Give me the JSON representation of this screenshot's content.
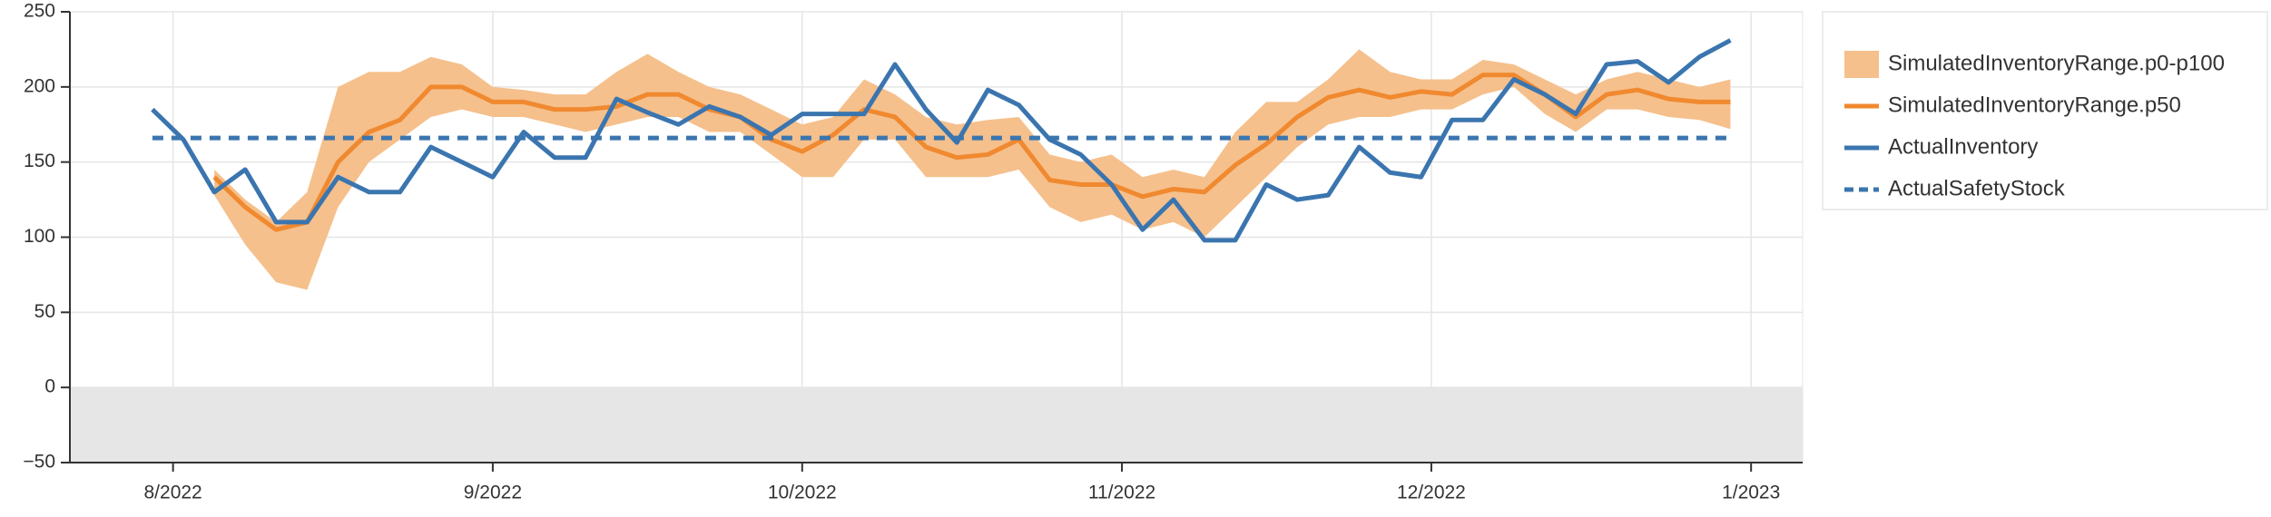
{
  "chart_data": {
    "type": "line",
    "x": [
      "2022-07-30",
      "2022-08-02",
      "2022-08-05",
      "2022-08-08",
      "2022-08-11",
      "2022-08-14",
      "2022-08-17",
      "2022-08-20",
      "2022-08-23",
      "2022-08-26",
      "2022-08-29",
      "2022-09-01",
      "2022-09-04",
      "2022-09-07",
      "2022-09-10",
      "2022-09-13",
      "2022-09-16",
      "2022-09-19",
      "2022-09-22",
      "2022-09-25",
      "2022-09-28",
      "2022-10-01",
      "2022-10-04",
      "2022-10-07",
      "2022-10-10",
      "2022-10-13",
      "2022-10-16",
      "2022-10-19",
      "2022-10-22",
      "2022-10-25",
      "2022-10-28",
      "2022-10-31",
      "2022-11-03",
      "2022-11-06",
      "2022-11-09",
      "2022-11-12",
      "2022-11-15",
      "2022-11-18",
      "2022-11-21",
      "2022-11-24",
      "2022-11-27",
      "2022-11-30",
      "2022-12-03",
      "2022-12-06",
      "2022-12-09",
      "2022-12-12",
      "2022-12-15",
      "2022-12-18",
      "2022-12-21",
      "2022-12-24",
      "2022-12-27",
      "2022-12-30"
    ],
    "bands": [
      {
        "name": "SimulatedInventoryRange.p0-p100",
        "color": "#f5c08c",
        "low": [
          null,
          null,
          128,
          95,
          70,
          65,
          120,
          150,
          165,
          180,
          185,
          180,
          180,
          175,
          170,
          175,
          180,
          180,
          170,
          170,
          155,
          140,
          140,
          165,
          165,
          140,
          140,
          140,
          145,
          120,
          110,
          115,
          105,
          110,
          100,
          120,
          140,
          160,
          175,
          180,
          180,
          185,
          185,
          195,
          200,
          182,
          170,
          185,
          185,
          180,
          178,
          172
        ],
        "high": [
          null,
          null,
          145,
          125,
          110,
          130,
          200,
          210,
          210,
          220,
          215,
          200,
          198,
          195,
          195,
          210,
          222,
          210,
          200,
          195,
          185,
          175,
          180,
          205,
          195,
          180,
          175,
          178,
          180,
          155,
          150,
          155,
          140,
          145,
          140,
          170,
          190,
          190,
          205,
          225,
          210,
          205,
          205,
          218,
          215,
          205,
          195,
          205,
          210,
          205,
          200,
          205
        ]
      }
    ],
    "series": [
      {
        "name": "SimulatedInventoryRange.p50",
        "color": "#f0892f",
        "dash": false,
        "values": [
          null,
          null,
          140,
          120,
          105,
          110,
          150,
          170,
          178,
          200,
          200,
          190,
          190,
          185,
          185,
          187,
          195,
          195,
          185,
          180,
          165,
          157,
          168,
          185,
          180,
          160,
          153,
          155,
          165,
          138,
          135,
          135,
          127,
          132,
          130,
          148,
          162,
          180,
          193,
          198,
          193,
          197,
          195,
          208,
          208,
          195,
          180,
          195,
          198,
          192,
          190,
          190
        ]
      },
      {
        "name": "ActualInventory",
        "color": "#3b75af",
        "dash": false,
        "values": [
          185,
          165,
          130,
          145,
          110,
          110,
          140,
          130,
          130,
          160,
          150,
          140,
          170,
          153,
          153,
          192,
          183,
          175,
          187,
          180,
          168,
          182,
          182,
          182,
          215,
          185,
          163,
          198,
          188,
          165,
          155,
          135,
          105,
          125,
          98,
          98,
          135,
          125,
          128,
          160,
          143,
          140,
          178,
          178,
          205,
          195,
          182,
          215,
          217,
          203,
          220,
          231
        ]
      },
      {
        "name": "ActualSafetyStock",
        "color": "#3b75af",
        "dash": true,
        "values": [
          166,
          166,
          166,
          166,
          166,
          166,
          166,
          166,
          166,
          166,
          166,
          166,
          166,
          166,
          166,
          166,
          166,
          166,
          166,
          166,
          166,
          166,
          166,
          166,
          166,
          166,
          166,
          166,
          166,
          166,
          166,
          166,
          166,
          166,
          166,
          166,
          166,
          166,
          166,
          166,
          166,
          166,
          166,
          166,
          166,
          166,
          166,
          166,
          166,
          166,
          166,
          166
        ]
      }
    ],
    "xlim": [
      "2022-07-22",
      "2023-01-06"
    ],
    "xticks": [
      {
        "value": "2022-08-01",
        "label": "8/2022"
      },
      {
        "value": "2022-09-01",
        "label": "9/2022"
      },
      {
        "value": "2022-10-01",
        "label": "10/2022"
      },
      {
        "value": "2022-11-01",
        "label": "11/2022"
      },
      {
        "value": "2022-12-01",
        "label": "12/2022"
      },
      {
        "value": "2023-01-01",
        "label": "1/2023"
      }
    ],
    "ylim": [
      -50,
      250
    ],
    "yticks": [
      {
        "value": -50,
        "label": "−50"
      },
      0,
      50,
      100,
      150,
      200,
      250
    ],
    "grid": true,
    "legend": "right"
  }
}
